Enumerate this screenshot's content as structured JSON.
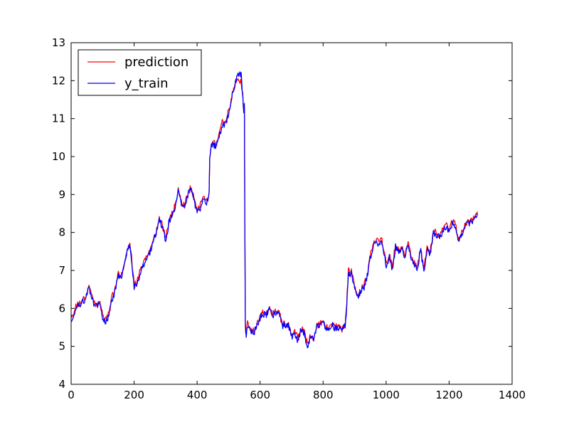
{
  "chart_data": {
    "type": "line",
    "title": "",
    "xlabel": "",
    "ylabel": "",
    "xlim": [
      0,
      1400
    ],
    "ylim": [
      4,
      13
    ],
    "xticks": [
      0,
      200,
      400,
      600,
      800,
      1000,
      1200,
      1400
    ],
    "yticks": [
      4,
      5,
      6,
      7,
      8,
      9,
      10,
      11,
      12,
      13
    ],
    "grid": false,
    "legend": {
      "placement": "top-left"
    },
    "series": [
      {
        "name": "prediction",
        "color": "#ff0000",
        "offset": 0.05,
        "x": [
          0,
          5,
          15,
          25,
          35,
          45,
          55,
          60,
          70,
          80,
          90,
          100,
          110,
          120,
          130,
          140,
          150,
          160,
          170,
          180,
          185,
          190,
          200,
          210,
          220,
          230,
          240,
          250,
          260,
          270,
          280,
          290,
          300,
          310,
          320,
          330,
          340,
          350,
          360,
          370,
          380,
          390,
          400,
          410,
          420,
          430,
          438,
          440,
          445,
          450,
          460,
          470,
          480,
          490,
          500,
          510,
          520,
          530,
          540,
          545,
          548,
          550,
          553,
          556,
          560,
          570,
          580,
          590,
          600,
          610,
          620,
          630,
          640,
          650,
          660,
          670,
          680,
          690,
          700,
          710,
          720,
          730,
          740,
          745,
          750,
          760,
          770,
          780,
          790,
          800,
          810,
          820,
          830,
          840,
          850,
          860,
          870,
          875,
          880,
          885,
          890,
          900,
          910,
          920,
          930,
          940,
          950,
          960,
          970,
          980,
          985,
          990,
          1000,
          1010,
          1020,
          1030,
          1040,
          1050,
          1060,
          1070,
          1080,
          1090,
          1100,
          1110,
          1120,
          1130,
          1140,
          1150,
          1160,
          1170,
          1180,
          1190,
          1200,
          1210,
          1220,
          1230,
          1240,
          1250,
          1260,
          1270,
          1280,
          1290
        ],
        "y": [
          5.8,
          5.75,
          6.1,
          6.1,
          6.2,
          6.3,
          6.55,
          6.5,
          6.2,
          6.1,
          6.2,
          5.8,
          5.7,
          5.85,
          6.3,
          6.5,
          6.9,
          6.9,
          7.2,
          7.6,
          7.7,
          7.5,
          6.6,
          6.7,
          7.0,
          7.2,
          7.35,
          7.5,
          7.8,
          8.0,
          8.35,
          8.2,
          7.8,
          8.3,
          8.5,
          8.7,
          9.1,
          8.8,
          8.7,
          9.0,
          9.2,
          8.9,
          8.6,
          8.7,
          8.9,
          8.8,
          9.0,
          10.0,
          10.3,
          10.4,
          10.3,
          10.6,
          10.9,
          10.9,
          11.2,
          11.6,
          11.95,
          12.0,
          12.0,
          11.6,
          11.2,
          11.3,
          5.5,
          5.3,
          5.6,
          5.4,
          5.4,
          5.6,
          5.8,
          5.9,
          5.9,
          6.0,
          5.85,
          5.95,
          5.9,
          5.6,
          5.6,
          5.6,
          5.3,
          5.4,
          5.2,
          5.5,
          5.4,
          5.2,
          5.1,
          5.3,
          5.2,
          5.55,
          5.6,
          5.7,
          5.5,
          5.5,
          5.6,
          5.5,
          5.55,
          5.45,
          5.6,
          6.1,
          7.0,
          6.95,
          7.0,
          6.6,
          6.3,
          6.5,
          6.6,
          6.9,
          7.4,
          7.7,
          7.8,
          7.7,
          7.9,
          7.6,
          7.2,
          7.4,
          7.1,
          7.7,
          7.5,
          7.6,
          7.4,
          7.8,
          7.3,
          7.2,
          7.1,
          7.6,
          7.0,
          7.6,
          7.5,
          8.05,
          8.0,
          7.9,
          8.1,
          8.2,
          8.05,
          8.3,
          8.2,
          7.8,
          8.0,
          8.2,
          8.3,
          8.3,
          8.4,
          8.55
        ]
      },
      {
        "name": "y_train",
        "color": "#0000ff",
        "offset": 0.0,
        "x": [
          0,
          5,
          15,
          25,
          35,
          45,
          55,
          60,
          70,
          80,
          90,
          100,
          110,
          120,
          130,
          140,
          150,
          160,
          170,
          180,
          185,
          190,
          200,
          210,
          220,
          230,
          240,
          250,
          260,
          270,
          280,
          290,
          300,
          310,
          320,
          330,
          340,
          350,
          360,
          370,
          380,
          390,
          400,
          410,
          420,
          430,
          438,
          440,
          445,
          450,
          460,
          470,
          480,
          490,
          500,
          510,
          520,
          530,
          540,
          545,
          548,
          550,
          553,
          556,
          560,
          570,
          580,
          590,
          600,
          610,
          620,
          630,
          640,
          650,
          660,
          670,
          680,
          690,
          700,
          710,
          720,
          730,
          740,
          745,
          750,
          760,
          770,
          780,
          790,
          800,
          810,
          820,
          830,
          840,
          850,
          860,
          870,
          875,
          880,
          885,
          890,
          900,
          910,
          920,
          930,
          940,
          950,
          960,
          970,
          980,
          985,
          990,
          1000,
          1010,
          1020,
          1030,
          1040,
          1050,
          1060,
          1070,
          1080,
          1090,
          1100,
          1110,
          1120,
          1130,
          1140,
          1150,
          1160,
          1170,
          1180,
          1190,
          1200,
          1210,
          1220,
          1230,
          1240,
          1250,
          1260,
          1270,
          1280,
          1290
        ],
        "y": [
          5.75,
          5.7,
          6.05,
          6.05,
          6.15,
          6.25,
          6.5,
          6.45,
          6.15,
          6.05,
          6.15,
          5.75,
          5.65,
          5.8,
          6.25,
          6.45,
          6.85,
          6.85,
          7.15,
          7.55,
          7.65,
          7.45,
          6.55,
          6.65,
          6.95,
          7.15,
          7.3,
          7.45,
          7.75,
          7.95,
          8.3,
          8.15,
          7.75,
          8.25,
          8.45,
          8.65,
          9.05,
          8.75,
          8.65,
          8.95,
          9.15,
          8.85,
          8.55,
          8.65,
          8.85,
          8.75,
          8.95,
          9.95,
          10.25,
          10.35,
          10.25,
          10.55,
          10.85,
          10.85,
          11.15,
          11.55,
          11.9,
          12.2,
          12.15,
          11.5,
          11.2,
          11.4,
          5.6,
          5.3,
          5.55,
          5.35,
          5.35,
          5.55,
          5.75,
          5.85,
          5.85,
          5.95,
          5.8,
          5.9,
          5.85,
          5.55,
          5.55,
          5.55,
          5.25,
          5.35,
          5.15,
          5.45,
          5.35,
          5.1,
          5.0,
          5.25,
          5.15,
          5.5,
          5.55,
          5.65,
          5.45,
          5.45,
          5.55,
          5.45,
          5.5,
          5.4,
          5.55,
          6.05,
          6.9,
          6.85,
          6.95,
          6.55,
          6.25,
          6.45,
          6.55,
          6.85,
          7.35,
          7.65,
          7.75,
          7.65,
          7.85,
          7.55,
          7.15,
          7.35,
          7.05,
          7.65,
          7.45,
          7.55,
          7.35,
          7.75,
          7.25,
          7.15,
          7.05,
          7.55,
          6.95,
          7.55,
          7.45,
          8.0,
          7.95,
          7.85,
          8.05,
          8.15,
          8.0,
          8.25,
          8.15,
          7.75,
          7.95,
          8.15,
          8.25,
          8.25,
          8.35,
          8.5
        ]
      }
    ]
  }
}
